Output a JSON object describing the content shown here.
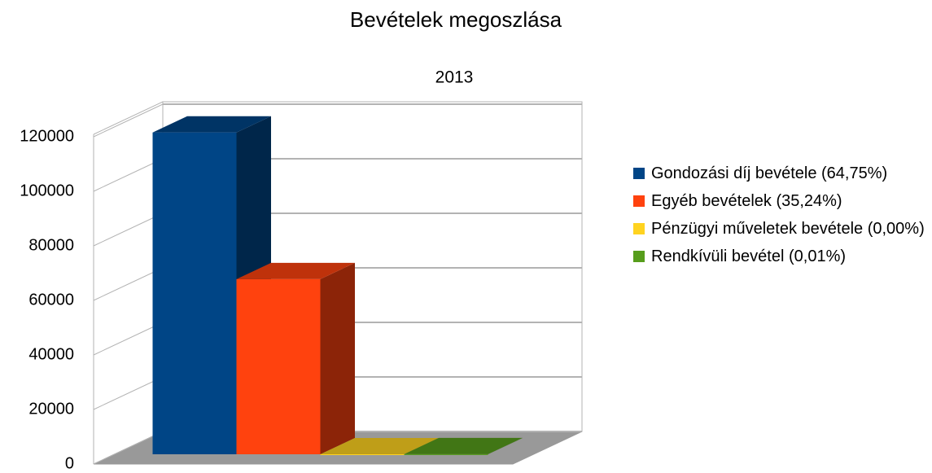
{
  "chart_data": {
    "type": "bar3d",
    "title": "Bevételek megoszlása",
    "categories": [
      "2013"
    ],
    "series": [
      {
        "name": "Gondozási díj bevétele (64,75%)",
        "color": "#004586",
        "values": [
          118000
        ]
      },
      {
        "name": "Egyéb bevételek (35,24%)",
        "color": "#ff420e",
        "values": [
          64200
        ]
      },
      {
        "name": "Pénzügyi műveletek bevétele (0,00%)",
        "color": "#ffd320",
        "values": [
          0
        ]
      },
      {
        "name": "Rendkívüli bevétel (0,01%)",
        "color": "#579d1c",
        "values": [
          20
        ]
      }
    ],
    "ylim": [
      0,
      120000
    ],
    "yticks": [
      0,
      20000,
      40000,
      60000,
      80000,
      100000,
      120000
    ],
    "grid": true,
    "legend": "right"
  }
}
